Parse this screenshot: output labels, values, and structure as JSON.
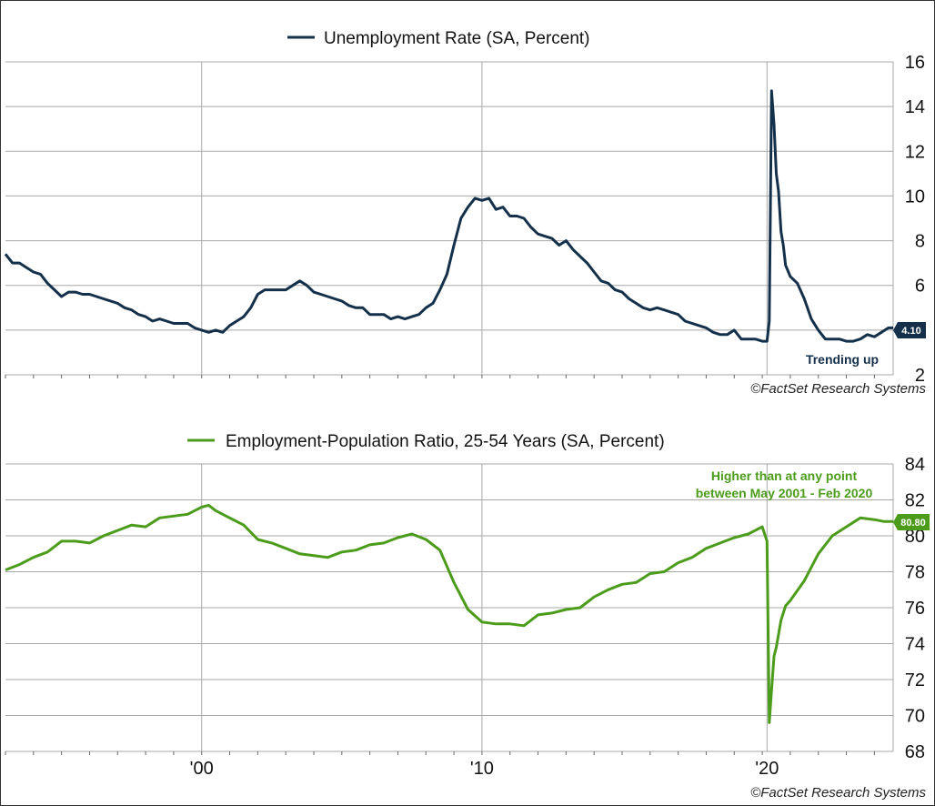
{
  "colors": {
    "unemployment": "#14304a",
    "epop": "#4c9c1c",
    "grid": "#a8a8a8"
  },
  "source": "©FactSet Research Systems",
  "chart_data": [
    {
      "type": "line",
      "legend": "Unemployment Rate (SA, Percent)",
      "ylim": [
        2,
        16
      ],
      "yticks": [
        2,
        4,
        6,
        8,
        10,
        12,
        14,
        16
      ],
      "xlim": [
        1993.0,
        2024.67
      ],
      "x_ticks": [
        {
          "x": 2000.0,
          "label": "'00"
        },
        {
          "x": 2010.0,
          "label": "'10"
        },
        {
          "x": 2020.17,
          "label": "'20"
        }
      ],
      "grid": true,
      "last_value_label": "4.10",
      "annotation": "Trending up",
      "series": [
        {
          "name": "Unemployment Rate (SA, Percent)",
          "points": [
            [
              1993.0,
              7.4
            ],
            [
              1993.25,
              7.0
            ],
            [
              1993.5,
              7.0
            ],
            [
              1993.75,
              6.8
            ],
            [
              1994.0,
              6.6
            ],
            [
              1994.25,
              6.5
            ],
            [
              1994.5,
              6.1
            ],
            [
              1994.75,
              5.8
            ],
            [
              1995.0,
              5.5
            ],
            [
              1995.25,
              5.7
            ],
            [
              1995.5,
              5.7
            ],
            [
              1995.75,
              5.6
            ],
            [
              1996.0,
              5.6
            ],
            [
              1996.25,
              5.5
            ],
            [
              1996.5,
              5.4
            ],
            [
              1996.75,
              5.3
            ],
            [
              1997.0,
              5.2
            ],
            [
              1997.25,
              5.0
            ],
            [
              1997.5,
              4.9
            ],
            [
              1997.75,
              4.7
            ],
            [
              1998.0,
              4.6
            ],
            [
              1998.25,
              4.4
            ],
            [
              1998.5,
              4.5
            ],
            [
              1998.75,
              4.4
            ],
            [
              1999.0,
              4.3
            ],
            [
              1999.25,
              4.3
            ],
            [
              1999.5,
              4.3
            ],
            [
              1999.75,
              4.1
            ],
            [
              2000.0,
              4.0
            ],
            [
              2000.25,
              3.9
            ],
            [
              2000.5,
              4.0
            ],
            [
              2000.75,
              3.9
            ],
            [
              2001.0,
              4.2
            ],
            [
              2001.25,
              4.4
            ],
            [
              2001.5,
              4.6
            ],
            [
              2001.75,
              5.0
            ],
            [
              2002.0,
              5.6
            ],
            [
              2002.25,
              5.8
            ],
            [
              2002.5,
              5.8
            ],
            [
              2002.75,
              5.8
            ],
            [
              2003.0,
              5.8
            ],
            [
              2003.25,
              6.0
            ],
            [
              2003.5,
              6.2
            ],
            [
              2003.75,
              6.0
            ],
            [
              2004.0,
              5.7
            ],
            [
              2004.25,
              5.6
            ],
            [
              2004.5,
              5.5
            ],
            [
              2004.75,
              5.4
            ],
            [
              2005.0,
              5.3
            ],
            [
              2005.25,
              5.1
            ],
            [
              2005.5,
              5.0
            ],
            [
              2005.75,
              5.0
            ],
            [
              2006.0,
              4.7
            ],
            [
              2006.25,
              4.7
            ],
            [
              2006.5,
              4.7
            ],
            [
              2006.75,
              4.5
            ],
            [
              2007.0,
              4.6
            ],
            [
              2007.25,
              4.5
            ],
            [
              2007.5,
              4.6
            ],
            [
              2007.75,
              4.7
            ],
            [
              2008.0,
              5.0
            ],
            [
              2008.25,
              5.2
            ],
            [
              2008.5,
              5.8
            ],
            [
              2008.75,
              6.5
            ],
            [
              2009.0,
              7.8
            ],
            [
              2009.25,
              9.0
            ],
            [
              2009.5,
              9.5
            ],
            [
              2009.75,
              9.9
            ],
            [
              2010.0,
              9.8
            ],
            [
              2010.25,
              9.9
            ],
            [
              2010.5,
              9.4
            ],
            [
              2010.75,
              9.5
            ],
            [
              2011.0,
              9.1
            ],
            [
              2011.25,
              9.1
            ],
            [
              2011.5,
              9.0
            ],
            [
              2011.75,
              8.6
            ],
            [
              2012.0,
              8.3
            ],
            [
              2012.25,
              8.2
            ],
            [
              2012.5,
              8.1
            ],
            [
              2012.75,
              7.8
            ],
            [
              2013.0,
              8.0
            ],
            [
              2013.25,
              7.6
            ],
            [
              2013.5,
              7.3
            ],
            [
              2013.75,
              7.0
            ],
            [
              2014.0,
              6.6
            ],
            [
              2014.25,
              6.2
            ],
            [
              2014.5,
              6.1
            ],
            [
              2014.75,
              5.8
            ],
            [
              2015.0,
              5.7
            ],
            [
              2015.25,
              5.4
            ],
            [
              2015.5,
              5.2
            ],
            [
              2015.75,
              5.0
            ],
            [
              2016.0,
              4.9
            ],
            [
              2016.25,
              5.0
            ],
            [
              2016.5,
              4.9
            ],
            [
              2016.75,
              4.8
            ],
            [
              2017.0,
              4.7
            ],
            [
              2017.25,
              4.4
            ],
            [
              2017.5,
              4.3
            ],
            [
              2017.75,
              4.2
            ],
            [
              2018.0,
              4.1
            ],
            [
              2018.25,
              3.9
            ],
            [
              2018.5,
              3.8
            ],
            [
              2018.75,
              3.8
            ],
            [
              2019.0,
              4.0
            ],
            [
              2019.25,
              3.6
            ],
            [
              2019.5,
              3.6
            ],
            [
              2019.75,
              3.6
            ],
            [
              2020.0,
              3.5
            ],
            [
              2020.17,
              3.5
            ],
            [
              2020.25,
              4.4
            ],
            [
              2020.33,
              14.7
            ],
            [
              2020.42,
              13.2
            ],
            [
              2020.5,
              11.0
            ],
            [
              2020.58,
              10.2
            ],
            [
              2020.67,
              8.4
            ],
            [
              2020.75,
              7.8
            ],
            [
              2020.83,
              6.9
            ],
            [
              2021.0,
              6.4
            ],
            [
              2021.25,
              6.1
            ],
            [
              2021.5,
              5.4
            ],
            [
              2021.75,
              4.5
            ],
            [
              2022.0,
              4.0
            ],
            [
              2022.25,
              3.6
            ],
            [
              2022.5,
              3.6
            ],
            [
              2022.75,
              3.6
            ],
            [
              2023.0,
              3.5
            ],
            [
              2023.25,
              3.5
            ],
            [
              2023.5,
              3.6
            ],
            [
              2023.75,
              3.8
            ],
            [
              2024.0,
              3.7
            ],
            [
              2024.25,
              3.9
            ],
            [
              2024.5,
              4.1
            ],
            [
              2024.67,
              4.1
            ]
          ]
        }
      ]
    },
    {
      "type": "line",
      "legend": "Employment-Population Ratio, 25-54 Years (SA, Percent)",
      "ylim": [
        68,
        84
      ],
      "yticks": [
        68,
        70,
        72,
        74,
        76,
        78,
        80,
        82,
        84
      ],
      "xlim": [
        1993.0,
        2024.67
      ],
      "x_ticks": [
        {
          "x": 2000.0,
          "label": "'00"
        },
        {
          "x": 2010.0,
          "label": "'10"
        },
        {
          "x": 2020.17,
          "label": "'20"
        }
      ],
      "grid": true,
      "last_value_label": "80.80",
      "annotation": [
        "Higher than at any point",
        "between May 2001 - Feb 2020"
      ],
      "series": [
        {
          "name": "Employment-Population Ratio, 25-54 Years (SA, Percent)",
          "points": [
            [
              1993.0,
              78.1
            ],
            [
              1993.5,
              78.4
            ],
            [
              1994.0,
              78.8
            ],
            [
              1994.5,
              79.1
            ],
            [
              1995.0,
              79.7
            ],
            [
              1995.5,
              79.7
            ],
            [
              1996.0,
              79.6
            ],
            [
              1996.5,
              80.0
            ],
            [
              1997.0,
              80.3
            ],
            [
              1997.5,
              80.6
            ],
            [
              1998.0,
              80.5
            ],
            [
              1998.5,
              81.0
            ],
            [
              1999.0,
              81.1
            ],
            [
              1999.5,
              81.2
            ],
            [
              2000.0,
              81.6
            ],
            [
              2000.25,
              81.7
            ],
            [
              2000.5,
              81.4
            ],
            [
              2000.75,
              81.2
            ],
            [
              2001.0,
              81.0
            ],
            [
              2001.5,
              80.6
            ],
            [
              2002.0,
              79.8
            ],
            [
              2002.5,
              79.6
            ],
            [
              2003.0,
              79.3
            ],
            [
              2003.5,
              79.0
            ],
            [
              2004.0,
              78.9
            ],
            [
              2004.5,
              78.8
            ],
            [
              2005.0,
              79.1
            ],
            [
              2005.5,
              79.2
            ],
            [
              2006.0,
              79.5
            ],
            [
              2006.5,
              79.6
            ],
            [
              2007.0,
              79.9
            ],
            [
              2007.5,
              80.1
            ],
            [
              2008.0,
              79.8
            ],
            [
              2008.5,
              79.2
            ],
            [
              2009.0,
              77.4
            ],
            [
              2009.5,
              75.9
            ],
            [
              2010.0,
              75.2
            ],
            [
              2010.5,
              75.1
            ],
            [
              2011.0,
              75.1
            ],
            [
              2011.5,
              75.0
            ],
            [
              2012.0,
              75.6
            ],
            [
              2012.5,
              75.7
            ],
            [
              2013.0,
              75.9
            ],
            [
              2013.5,
              76.0
            ],
            [
              2014.0,
              76.6
            ],
            [
              2014.5,
              77.0
            ],
            [
              2015.0,
              77.3
            ],
            [
              2015.5,
              77.4
            ],
            [
              2016.0,
              77.9
            ],
            [
              2016.5,
              78.0
            ],
            [
              2017.0,
              78.5
            ],
            [
              2017.5,
              78.8
            ],
            [
              2018.0,
              79.3
            ],
            [
              2018.5,
              79.6
            ],
            [
              2019.0,
              79.9
            ],
            [
              2019.5,
              80.1
            ],
            [
              2020.0,
              80.5
            ],
            [
              2020.17,
              79.7
            ],
            [
              2020.25,
              69.6
            ],
            [
              2020.33,
              71.4
            ],
            [
              2020.42,
              73.3
            ],
            [
              2020.5,
              73.8
            ],
            [
              2020.67,
              75.3
            ],
            [
              2020.83,
              76.1
            ],
            [
              2021.0,
              76.4
            ],
            [
              2021.5,
              77.5
            ],
            [
              2022.0,
              79.0
            ],
            [
              2022.5,
              80.0
            ],
            [
              2023.0,
              80.5
            ],
            [
              2023.5,
              81.0
            ],
            [
              2024.0,
              80.9
            ],
            [
              2024.33,
              80.8
            ],
            [
              2024.67,
              80.8
            ]
          ]
        }
      ]
    }
  ]
}
